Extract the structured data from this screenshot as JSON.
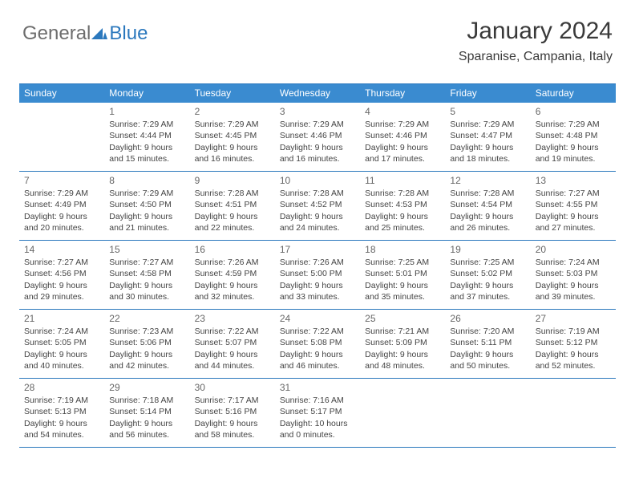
{
  "logo": {
    "general": "General",
    "blue": "Blue"
  },
  "title": "January 2024",
  "subtitle": "Sparanise, Campania, Italy",
  "colors": {
    "header_bg": "#3a8bd0",
    "header_border": "#2b78bd",
    "logo_gray": "#6d6d6d",
    "logo_blue": "#2b78bd",
    "text": "#3a3a3a"
  },
  "typography": {
    "title_fontsize": 30,
    "subtitle_fontsize": 16,
    "header_fontsize": 12,
    "daynum_fontsize": 12,
    "body_fontsize": 10.5
  },
  "day_names": [
    "Sunday",
    "Monday",
    "Tuesday",
    "Wednesday",
    "Thursday",
    "Friday",
    "Saturday"
  ],
  "weeks": [
    [
      null,
      {
        "n": "1",
        "sr": "Sunrise: 7:29 AM",
        "ss": "Sunset: 4:44 PM",
        "d1": "Daylight: 9 hours",
        "d2": "and 15 minutes."
      },
      {
        "n": "2",
        "sr": "Sunrise: 7:29 AM",
        "ss": "Sunset: 4:45 PM",
        "d1": "Daylight: 9 hours",
        "d2": "and 16 minutes."
      },
      {
        "n": "3",
        "sr": "Sunrise: 7:29 AM",
        "ss": "Sunset: 4:46 PM",
        "d1": "Daylight: 9 hours",
        "d2": "and 16 minutes."
      },
      {
        "n": "4",
        "sr": "Sunrise: 7:29 AM",
        "ss": "Sunset: 4:46 PM",
        "d1": "Daylight: 9 hours",
        "d2": "and 17 minutes."
      },
      {
        "n": "5",
        "sr": "Sunrise: 7:29 AM",
        "ss": "Sunset: 4:47 PM",
        "d1": "Daylight: 9 hours",
        "d2": "and 18 minutes."
      },
      {
        "n": "6",
        "sr": "Sunrise: 7:29 AM",
        "ss": "Sunset: 4:48 PM",
        "d1": "Daylight: 9 hours",
        "d2": "and 19 minutes."
      }
    ],
    [
      {
        "n": "7",
        "sr": "Sunrise: 7:29 AM",
        "ss": "Sunset: 4:49 PM",
        "d1": "Daylight: 9 hours",
        "d2": "and 20 minutes."
      },
      {
        "n": "8",
        "sr": "Sunrise: 7:29 AM",
        "ss": "Sunset: 4:50 PM",
        "d1": "Daylight: 9 hours",
        "d2": "and 21 minutes."
      },
      {
        "n": "9",
        "sr": "Sunrise: 7:28 AM",
        "ss": "Sunset: 4:51 PM",
        "d1": "Daylight: 9 hours",
        "d2": "and 22 minutes."
      },
      {
        "n": "10",
        "sr": "Sunrise: 7:28 AM",
        "ss": "Sunset: 4:52 PM",
        "d1": "Daylight: 9 hours",
        "d2": "and 24 minutes."
      },
      {
        "n": "11",
        "sr": "Sunrise: 7:28 AM",
        "ss": "Sunset: 4:53 PM",
        "d1": "Daylight: 9 hours",
        "d2": "and 25 minutes."
      },
      {
        "n": "12",
        "sr": "Sunrise: 7:28 AM",
        "ss": "Sunset: 4:54 PM",
        "d1": "Daylight: 9 hours",
        "d2": "and 26 minutes."
      },
      {
        "n": "13",
        "sr": "Sunrise: 7:27 AM",
        "ss": "Sunset: 4:55 PM",
        "d1": "Daylight: 9 hours",
        "d2": "and 27 minutes."
      }
    ],
    [
      {
        "n": "14",
        "sr": "Sunrise: 7:27 AM",
        "ss": "Sunset: 4:56 PM",
        "d1": "Daylight: 9 hours",
        "d2": "and 29 minutes."
      },
      {
        "n": "15",
        "sr": "Sunrise: 7:27 AM",
        "ss": "Sunset: 4:58 PM",
        "d1": "Daylight: 9 hours",
        "d2": "and 30 minutes."
      },
      {
        "n": "16",
        "sr": "Sunrise: 7:26 AM",
        "ss": "Sunset: 4:59 PM",
        "d1": "Daylight: 9 hours",
        "d2": "and 32 minutes."
      },
      {
        "n": "17",
        "sr": "Sunrise: 7:26 AM",
        "ss": "Sunset: 5:00 PM",
        "d1": "Daylight: 9 hours",
        "d2": "and 33 minutes."
      },
      {
        "n": "18",
        "sr": "Sunrise: 7:25 AM",
        "ss": "Sunset: 5:01 PM",
        "d1": "Daylight: 9 hours",
        "d2": "and 35 minutes."
      },
      {
        "n": "19",
        "sr": "Sunrise: 7:25 AM",
        "ss": "Sunset: 5:02 PM",
        "d1": "Daylight: 9 hours",
        "d2": "and 37 minutes."
      },
      {
        "n": "20",
        "sr": "Sunrise: 7:24 AM",
        "ss": "Sunset: 5:03 PM",
        "d1": "Daylight: 9 hours",
        "d2": "and 39 minutes."
      }
    ],
    [
      {
        "n": "21",
        "sr": "Sunrise: 7:24 AM",
        "ss": "Sunset: 5:05 PM",
        "d1": "Daylight: 9 hours",
        "d2": "and 40 minutes."
      },
      {
        "n": "22",
        "sr": "Sunrise: 7:23 AM",
        "ss": "Sunset: 5:06 PM",
        "d1": "Daylight: 9 hours",
        "d2": "and 42 minutes."
      },
      {
        "n": "23",
        "sr": "Sunrise: 7:22 AM",
        "ss": "Sunset: 5:07 PM",
        "d1": "Daylight: 9 hours",
        "d2": "and 44 minutes."
      },
      {
        "n": "24",
        "sr": "Sunrise: 7:22 AM",
        "ss": "Sunset: 5:08 PM",
        "d1": "Daylight: 9 hours",
        "d2": "and 46 minutes."
      },
      {
        "n": "25",
        "sr": "Sunrise: 7:21 AM",
        "ss": "Sunset: 5:09 PM",
        "d1": "Daylight: 9 hours",
        "d2": "and 48 minutes."
      },
      {
        "n": "26",
        "sr": "Sunrise: 7:20 AM",
        "ss": "Sunset: 5:11 PM",
        "d1": "Daylight: 9 hours",
        "d2": "and 50 minutes."
      },
      {
        "n": "27",
        "sr": "Sunrise: 7:19 AM",
        "ss": "Sunset: 5:12 PM",
        "d1": "Daylight: 9 hours",
        "d2": "and 52 minutes."
      }
    ],
    [
      {
        "n": "28",
        "sr": "Sunrise: 7:19 AM",
        "ss": "Sunset: 5:13 PM",
        "d1": "Daylight: 9 hours",
        "d2": "and 54 minutes."
      },
      {
        "n": "29",
        "sr": "Sunrise: 7:18 AM",
        "ss": "Sunset: 5:14 PM",
        "d1": "Daylight: 9 hours",
        "d2": "and 56 minutes."
      },
      {
        "n": "30",
        "sr": "Sunrise: 7:17 AM",
        "ss": "Sunset: 5:16 PM",
        "d1": "Daylight: 9 hours",
        "d2": "and 58 minutes."
      },
      {
        "n": "31",
        "sr": "Sunrise: 7:16 AM",
        "ss": "Sunset: 5:17 PM",
        "d1": "Daylight: 10 hours",
        "d2": "and 0 minutes."
      },
      null,
      null,
      null
    ]
  ]
}
